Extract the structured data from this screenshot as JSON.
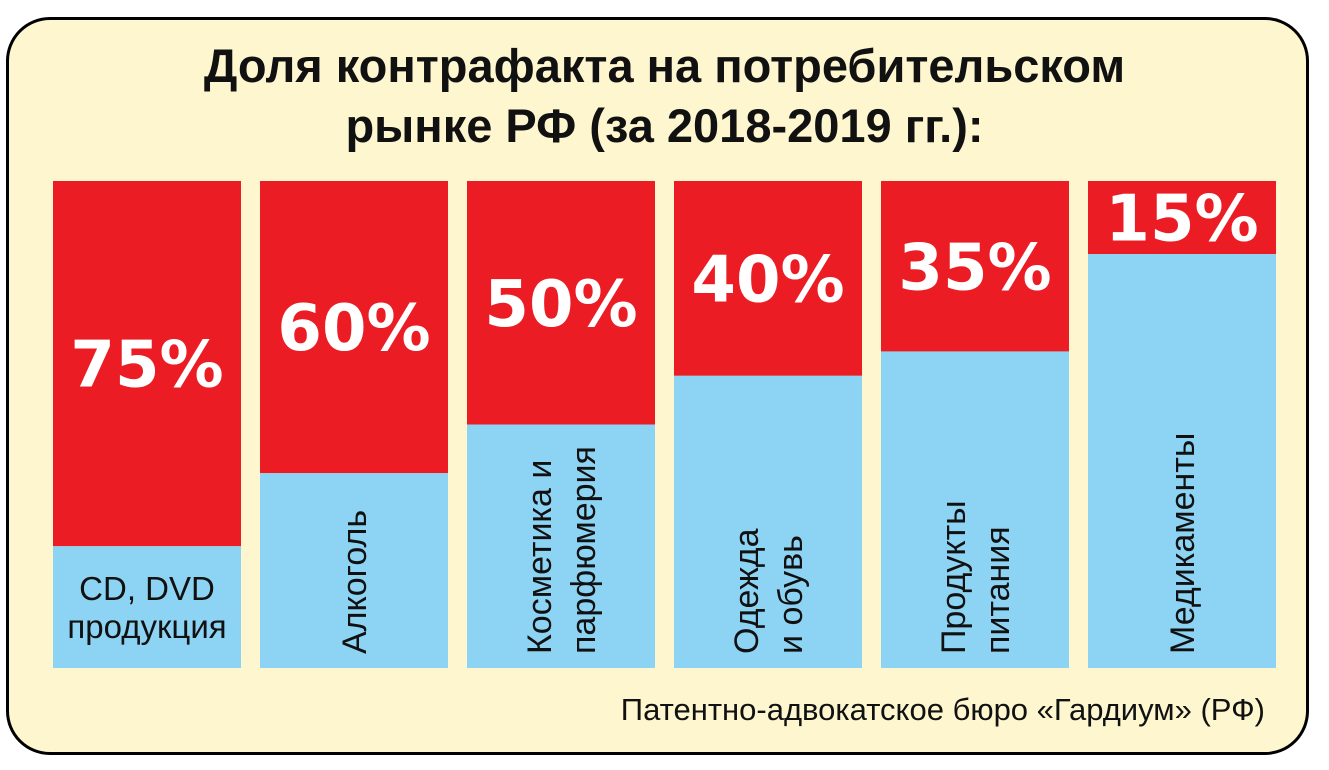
{
  "title_line1": "Доля контрафакта на потребительском",
  "title_line2": "рынке РФ (за 2018-2019 гг.):",
  "source": "Патентно-адвокатское бюро «Гардиум» (РФ)",
  "colors": {
    "counterfeit": "#ec1c24",
    "legal": "#8dd3f3",
    "background": "#fdf6cf"
  },
  "chart_data": {
    "type": "bar",
    "stacked": true,
    "title": "Доля контрафакта на потребительском рынке РФ (за 2018-2019 гг.):",
    "categories": [
      [
        "CD, DVD",
        "продукция"
      ],
      [
        "Алкоголь"
      ],
      [
        "Косметика и",
        "парфюмерия"
      ],
      [
        "Одежда",
        "и обувь"
      ],
      [
        "Продукты",
        "питания"
      ],
      [
        "Медикаменты"
      ]
    ],
    "values": [
      75,
      60,
      50,
      40,
      35,
      15
    ],
    "labels": [
      "75%",
      "60%",
      "50%",
      "40%",
      "35%",
      "15%"
    ],
    "ylim": [
      0,
      100
    ]
  }
}
